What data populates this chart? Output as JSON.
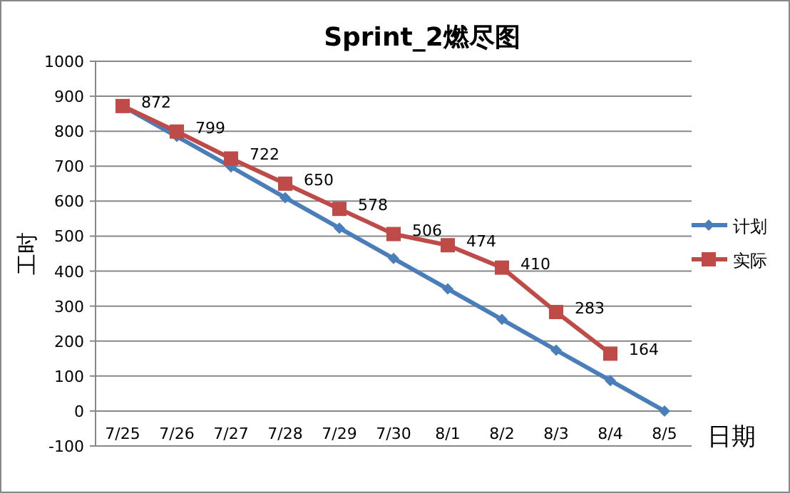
{
  "chart_data": {
    "type": "line",
    "title": "Sprint_2燃尽图",
    "xlabel": "日期",
    "ylabel": "工时",
    "categories": [
      "7/25",
      "7/26",
      "7/27",
      "7/28",
      "7/29",
      "7/30",
      "8/1",
      "8/2",
      "8/3",
      "8/4",
      "8/5"
    ],
    "series": [
      {
        "name": "计划",
        "color": "#4a7ebb",
        "marker": "diamond",
        "values": [
          872,
          785,
          698,
          610,
          523,
          436,
          349,
          262,
          174,
          87,
          0
        ]
      },
      {
        "name": "实际",
        "color": "#be4b48",
        "marker": "square",
        "values": [
          872,
          799,
          722,
          650,
          578,
          506,
          474,
          410,
          283,
          164,
          null
        ],
        "value_labels": [
          "872",
          "799",
          "722",
          "650",
          "578",
          "506",
          "474",
          "410",
          "283",
          "164",
          null
        ]
      }
    ],
    "ylim": [
      -100,
      1000
    ],
    "yticks": [
      -100,
      0,
      100,
      200,
      300,
      400,
      500,
      600,
      700,
      800,
      900,
      1000
    ],
    "grid": "y",
    "legend": "right"
  }
}
